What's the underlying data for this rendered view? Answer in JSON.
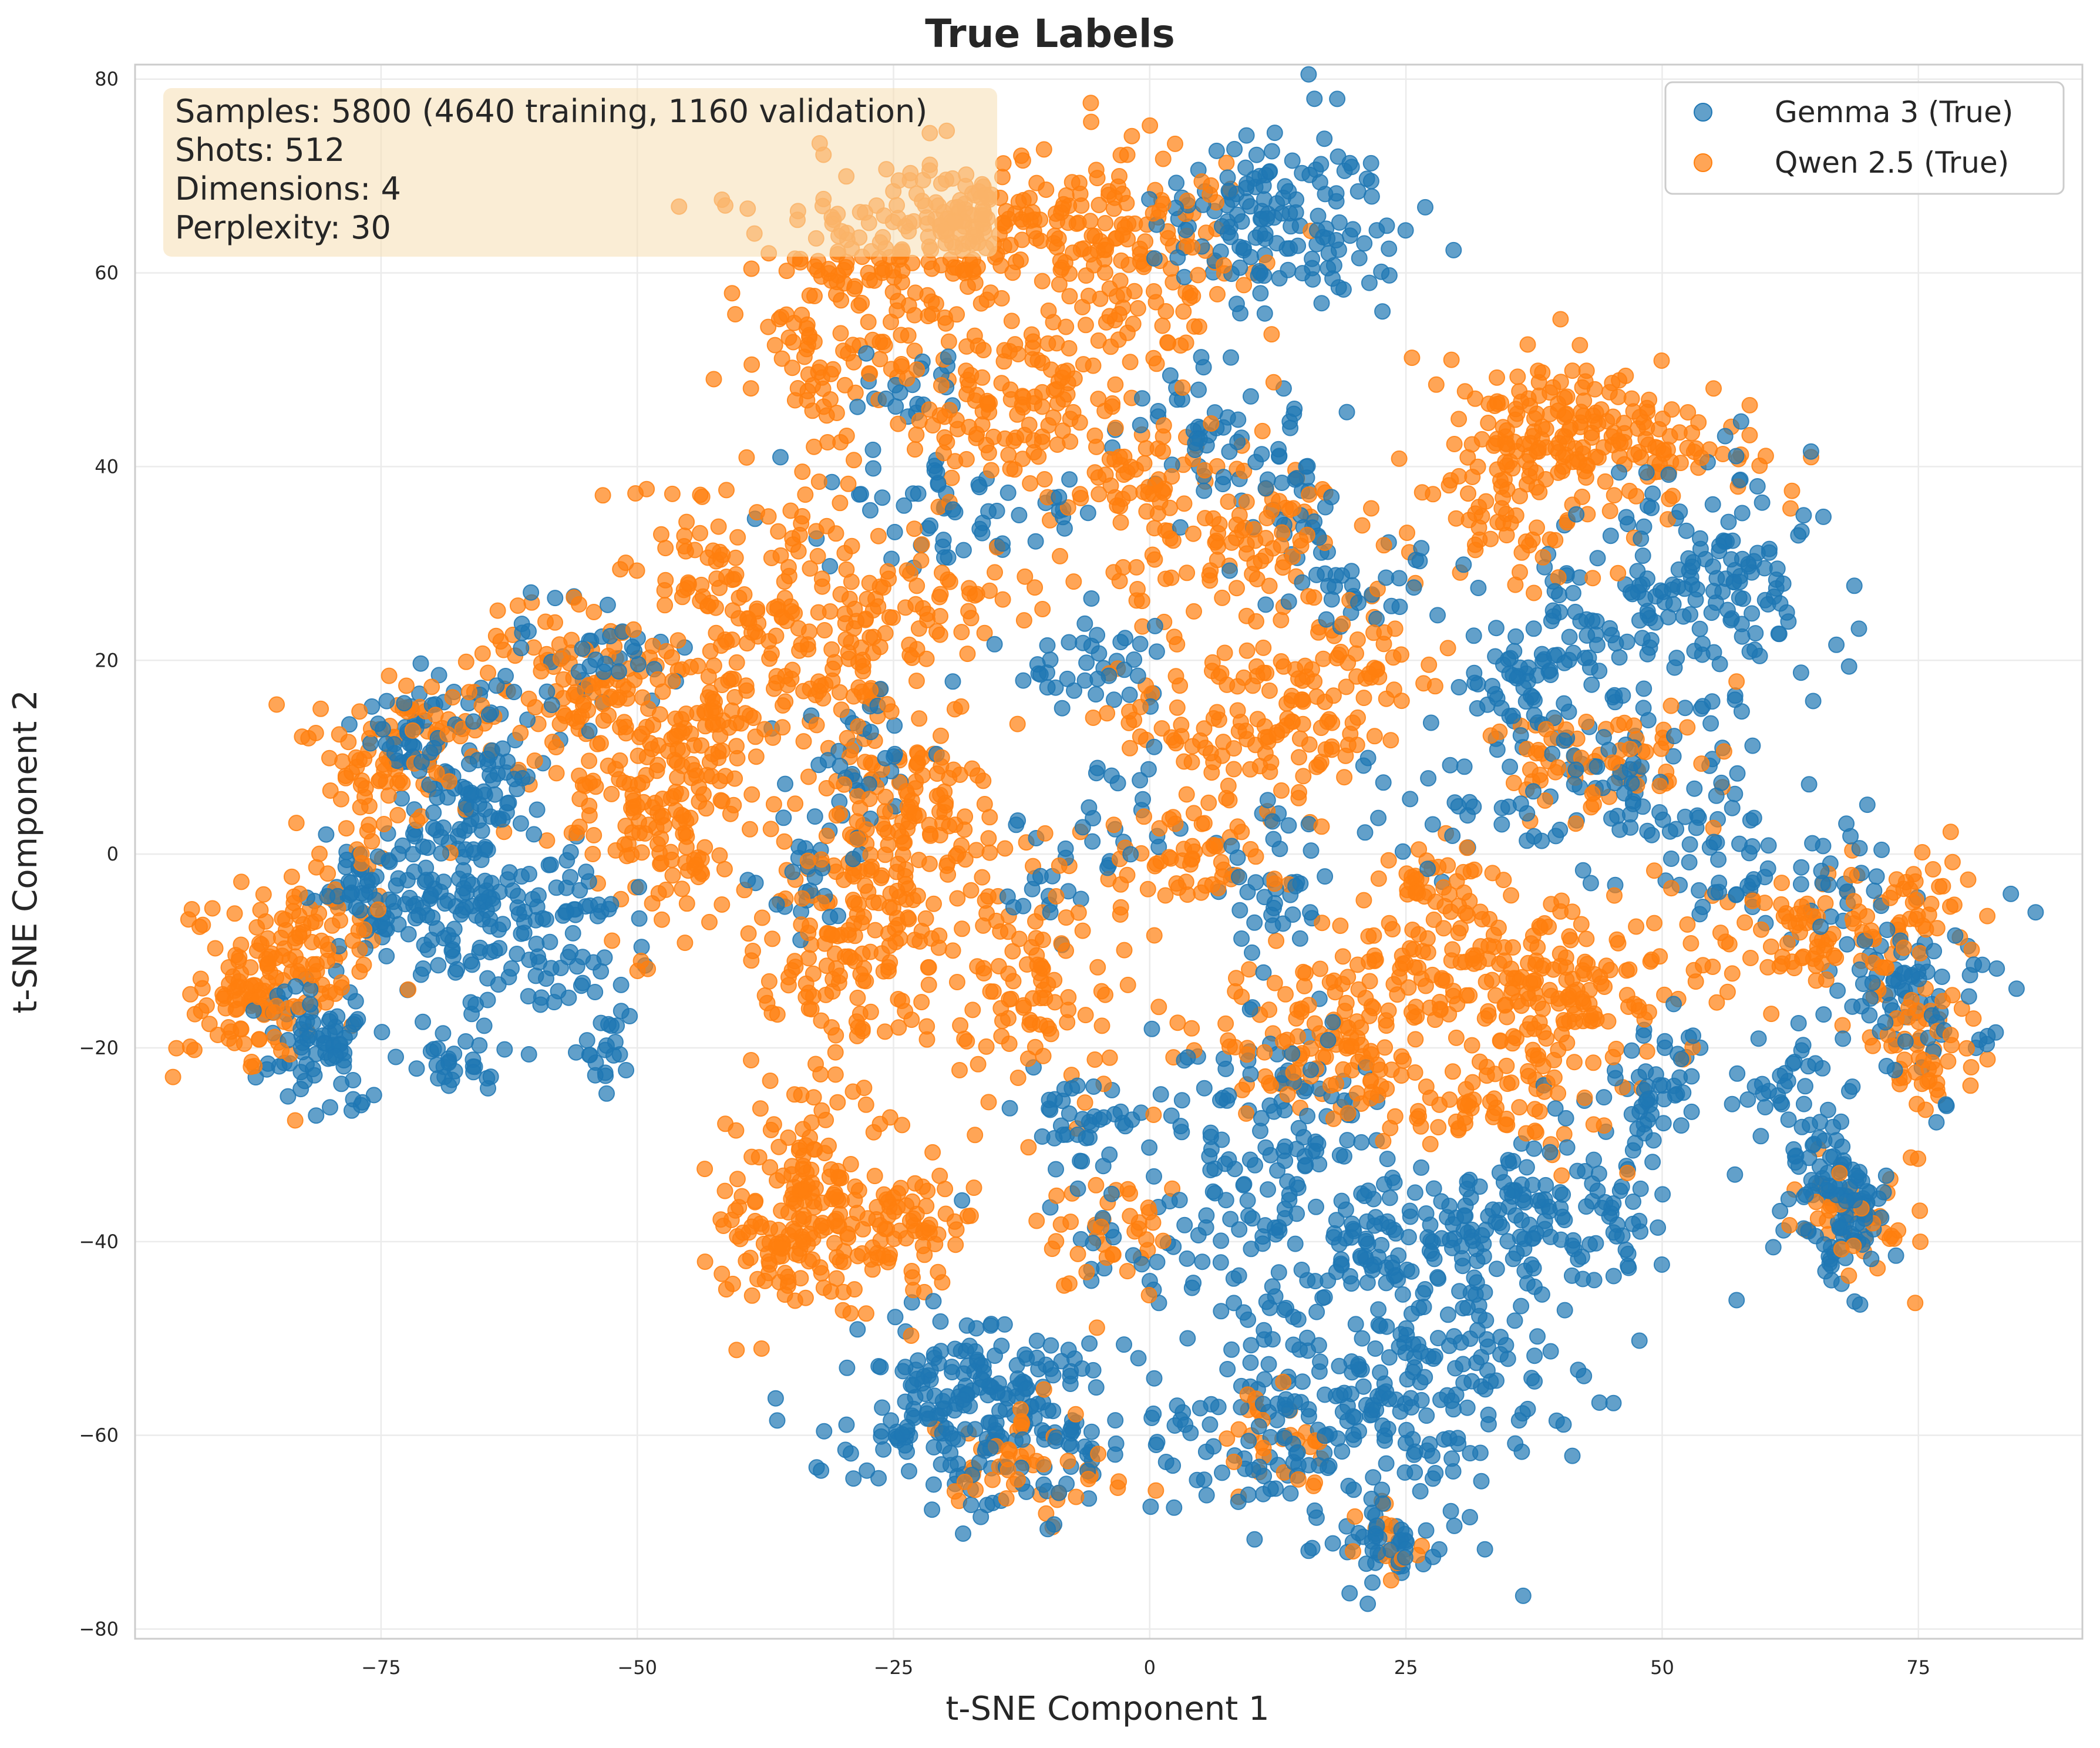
{
  "chart_data": {
    "type": "scatter",
    "title": "True Labels",
    "xlabel": "t-SNE Component 1",
    "ylabel": "t-SNE Component 2",
    "xlim": [
      -99,
      91
    ],
    "ylim": [
      -81,
      81.5
    ],
    "xticks": [
      -75,
      -50,
      -25,
      0,
      25,
      50,
      75
    ],
    "xtick_labels": [
      "−75",
      "−50",
      "−25",
      "0",
      "25",
      "50",
      "75"
    ],
    "yticks": [
      -80,
      -60,
      -40,
      -20,
      0,
      20,
      40,
      60,
      80
    ],
    "ytick_labels": [
      "−80",
      "−60",
      "−40",
      "−20",
      "0",
      "20",
      "40",
      "60",
      "80"
    ],
    "grid": true,
    "legend_position": "top-right",
    "info_box": {
      "position": "top-left",
      "lines": [
        "Samples: 5800 (4640 training, 1160 validation)",
        "Shots: 512",
        "Dimensions: 4",
        "Perplexity: 30"
      ]
    },
    "colors": {
      "gemma": "#1f77b4",
      "qwen": "#ff7f0e",
      "info_box_bg": "#f5deb3"
    },
    "series": [
      {
        "name": "Gemma 3 (True)",
        "color": "#1f77b4",
        "clusters": [
          {
            "x": 13,
            "y": 66,
            "sx": 6,
            "sy": 5,
            "n": 150
          },
          {
            "x": 56,
            "y": 29,
            "sx": 5,
            "sy": 6,
            "n": 130
          },
          {
            "x": 45,
            "y": 24,
            "sx": 5,
            "sy": 4,
            "n": 60
          },
          {
            "x": 35,
            "y": 17,
            "sx": 3,
            "sy": 3,
            "n": 50
          },
          {
            "x": 43,
            "y": 8,
            "sx": 5,
            "sy": 4,
            "n": 60
          },
          {
            "x": 53,
            "y": 3,
            "sx": 4,
            "sy": 6,
            "n": 50
          },
          {
            "x": 74,
            "y": -14,
            "sx": 4,
            "sy": 5,
            "n": 90
          },
          {
            "x": 67,
            "y": -36,
            "sx": 2.5,
            "sy": 4,
            "n": 110
          },
          {
            "x": 63,
            "y": -24,
            "sx": 3,
            "sy": 3,
            "n": 30
          },
          {
            "x": -17,
            "y": -57,
            "sx": 7,
            "sy": 5,
            "n": 240
          },
          {
            "x": 14,
            "y": -57,
            "sx": 5,
            "sy": 6,
            "n": 120
          },
          {
            "x": 28,
            "y": -56,
            "sx": 6,
            "sy": 8,
            "n": 160
          },
          {
            "x": 23,
            "y": -71,
            "sx": 3,
            "sy": 2,
            "n": 40
          },
          {
            "x": 24,
            "y": -40,
            "sx": 7,
            "sy": 4,
            "n": 120
          },
          {
            "x": 40,
            "y": -37,
            "sx": 6,
            "sy": 5,
            "n": 120
          },
          {
            "x": 12,
            "y": -28,
            "sx": 6,
            "sy": 5,
            "n": 100
          },
          {
            "x": 49,
            "y": -25,
            "sx": 3,
            "sy": 4,
            "n": 50
          },
          {
            "x": -81,
            "y": -20,
            "sx": 3,
            "sy": 3,
            "n": 80
          },
          {
            "x": -68,
            "y": -5,
            "sx": 4,
            "sy": 5,
            "n": 110
          },
          {
            "x": -77,
            "y": -4,
            "sx": 3,
            "sy": 3,
            "n": 50
          },
          {
            "x": -65,
            "y": 7,
            "sx": 4,
            "sy": 4,
            "n": 80
          },
          {
            "x": -58,
            "y": -8,
            "sx": 4,
            "sy": 5,
            "n": 80
          },
          {
            "x": -54,
            "y": 21,
            "sx": 4,
            "sy": 3,
            "n": 40
          },
          {
            "x": -72,
            "y": 12,
            "sx": 3,
            "sy": 3,
            "n": 40
          },
          {
            "x": -67,
            "y": -21,
            "sx": 3,
            "sy": 2,
            "n": 30
          },
          {
            "x": -53,
            "y": -20,
            "sx": 2,
            "sy": 3,
            "n": 20
          },
          {
            "x": 13,
            "y": 36,
            "sx": 3,
            "sy": 5,
            "n": 40
          },
          {
            "x": 5,
            "y": 44,
            "sx": 4,
            "sy": 4,
            "n": 40
          },
          {
            "x": -18,
            "y": 36,
            "sx": 6,
            "sy": 3,
            "n": 60
          },
          {
            "x": -22,
            "y": 47,
            "sx": 3,
            "sy": 3,
            "n": 20
          },
          {
            "x": -6,
            "y": 19,
            "sx": 4,
            "sy": 3,
            "n": 40
          },
          {
            "x": 12,
            "y": -3,
            "sx": 3,
            "sy": 4,
            "n": 40
          },
          {
            "x": -3,
            "y": 6,
            "sx": 3,
            "sy": 3,
            "n": 20
          },
          {
            "x": -28,
            "y": 8,
            "sx": 3,
            "sy": 4,
            "n": 30
          },
          {
            "x": -34,
            "y": -2,
            "sx": 3,
            "sy": 4,
            "n": 30
          },
          {
            "x": -6,
            "y": -28,
            "sx": 4,
            "sy": 3,
            "n": 40
          },
          {
            "x": -10,
            "y": -2,
            "sx": 3,
            "sy": 3,
            "n": 20
          },
          {
            "x": 4,
            "y": -40,
            "sx": 6,
            "sy": 3,
            "n": 40
          },
          {
            "x": 28,
            "y": 4,
            "sx": 3,
            "sy": 3,
            "n": 20
          },
          {
            "x": 63,
            "y": -2,
            "sx": 5,
            "sy": 4,
            "n": 30
          },
          {
            "x": 20,
            "y": 28,
            "sx": 4,
            "sy": 3,
            "n": 30
          },
          {
            "x": 0,
            "y": -60,
            "sx": 4,
            "sy": 3,
            "n": 20
          }
        ]
      },
      {
        "name": "Qwen 2.5 (True)",
        "color": "#ff7f0e",
        "clusters": [
          {
            "x": -22,
            "y": 62,
            "sx": 9,
            "sy": 5,
            "n": 200
          },
          {
            "x": -17,
            "y": 66,
            "sx": 3,
            "sy": 2,
            "n": 60
          },
          {
            "x": -2,
            "y": 61,
            "sx": 6,
            "sy": 6,
            "n": 150
          },
          {
            "x": -13,
            "y": 46,
            "sx": 6,
            "sy": 4,
            "n": 120
          },
          {
            "x": -31,
            "y": 52,
            "sx": 4,
            "sy": 5,
            "n": 70
          },
          {
            "x": -38,
            "y": 26,
            "sx": 6,
            "sy": 8,
            "n": 180
          },
          {
            "x": -28,
            "y": 20,
            "sx": 4,
            "sy": 4,
            "n": 60
          },
          {
            "x": -58,
            "y": 18,
            "sx": 6,
            "sy": 4,
            "n": 100
          },
          {
            "x": -74,
            "y": 10,
            "sx": 4,
            "sy": 4,
            "n": 90
          },
          {
            "x": -88,
            "y": -15,
            "sx": 3,
            "sy": 4,
            "n": 100
          },
          {
            "x": -81,
            "y": -8,
            "sx": 4,
            "sy": 4,
            "n": 80
          },
          {
            "x": -48,
            "y": 5,
            "sx": 5,
            "sy": 6,
            "n": 150
          },
          {
            "x": -28,
            "y": -3,
            "sx": 6,
            "sy": 7,
            "n": 180
          },
          {
            "x": -22,
            "y": 6,
            "sx": 4,
            "sy": 4,
            "n": 50
          },
          {
            "x": -34,
            "y": -32,
            "sx": 3,
            "sy": 5,
            "n": 70
          },
          {
            "x": -36,
            "y": -40,
            "sx": 4,
            "sy": 4,
            "n": 100
          },
          {
            "x": -24,
            "y": -38,
            "sx": 4,
            "sy": 4,
            "n": 80
          },
          {
            "x": -30,
            "y": -15,
            "sx": 3,
            "sy": 6,
            "n": 50
          },
          {
            "x": 10,
            "y": 14,
            "sx": 7,
            "sy": 4,
            "n": 120
          },
          {
            "x": 21,
            "y": 20,
            "sx": 4,
            "sy": 4,
            "n": 50
          },
          {
            "x": 5,
            "y": 0,
            "sx": 5,
            "sy": 3,
            "n": 60
          },
          {
            "x": 40,
            "y": 44,
            "sx": 6,
            "sy": 4,
            "n": 150
          },
          {
            "x": 35,
            "y": 37,
            "sx": 5,
            "sy": 5,
            "n": 70
          },
          {
            "x": 52,
            "y": 42,
            "sx": 4,
            "sy": 3,
            "n": 40
          },
          {
            "x": 45,
            "y": 10,
            "sx": 6,
            "sy": 3,
            "n": 70
          },
          {
            "x": 30,
            "y": -12,
            "sx": 8,
            "sy": 4,
            "n": 150
          },
          {
            "x": 40,
            "y": -14,
            "sx": 6,
            "sy": 4,
            "n": 100
          },
          {
            "x": 16,
            "y": -20,
            "sx": 6,
            "sy": 4,
            "n": 100
          },
          {
            "x": 33,
            "y": -25,
            "sx": 6,
            "sy": 3,
            "n": 70
          },
          {
            "x": 63,
            "y": -8,
            "sx": 6,
            "sy": 3,
            "n": 80
          },
          {
            "x": 75,
            "y": -20,
            "sx": 3,
            "sy": 4,
            "n": 60
          },
          {
            "x": 69,
            "y": -37,
            "sx": 3,
            "sy": 3,
            "n": 40
          },
          {
            "x": 73,
            "y": -5,
            "sx": 4,
            "sy": 3,
            "n": 40
          },
          {
            "x": -10,
            "y": -13,
            "sx": 5,
            "sy": 6,
            "n": 100
          },
          {
            "x": -4,
            "y": -40,
            "sx": 4,
            "sy": 4,
            "n": 40
          },
          {
            "x": -12,
            "y": -63,
            "sx": 5,
            "sy": 3,
            "n": 50
          },
          {
            "x": 12,
            "y": -60,
            "sx": 4,
            "sy": 3,
            "n": 30
          },
          {
            "x": 2,
            "y": 35,
            "sx": 5,
            "sy": 6,
            "n": 100
          },
          {
            "x": 14,
            "y": 32,
            "sx": 5,
            "sy": 3,
            "n": 50
          },
          {
            "x": -20,
            "y": 26,
            "sx": 5,
            "sy": 3,
            "n": 40
          },
          {
            "x": 27,
            "y": -3,
            "sx": 3,
            "sy": 3,
            "n": 30
          },
          {
            "x": 23,
            "y": -70,
            "sx": 2,
            "sy": 2,
            "n": 15
          },
          {
            "x": -44,
            "y": 15,
            "sx": 4,
            "sy": 4,
            "n": 40
          }
        ]
      }
    ]
  }
}
